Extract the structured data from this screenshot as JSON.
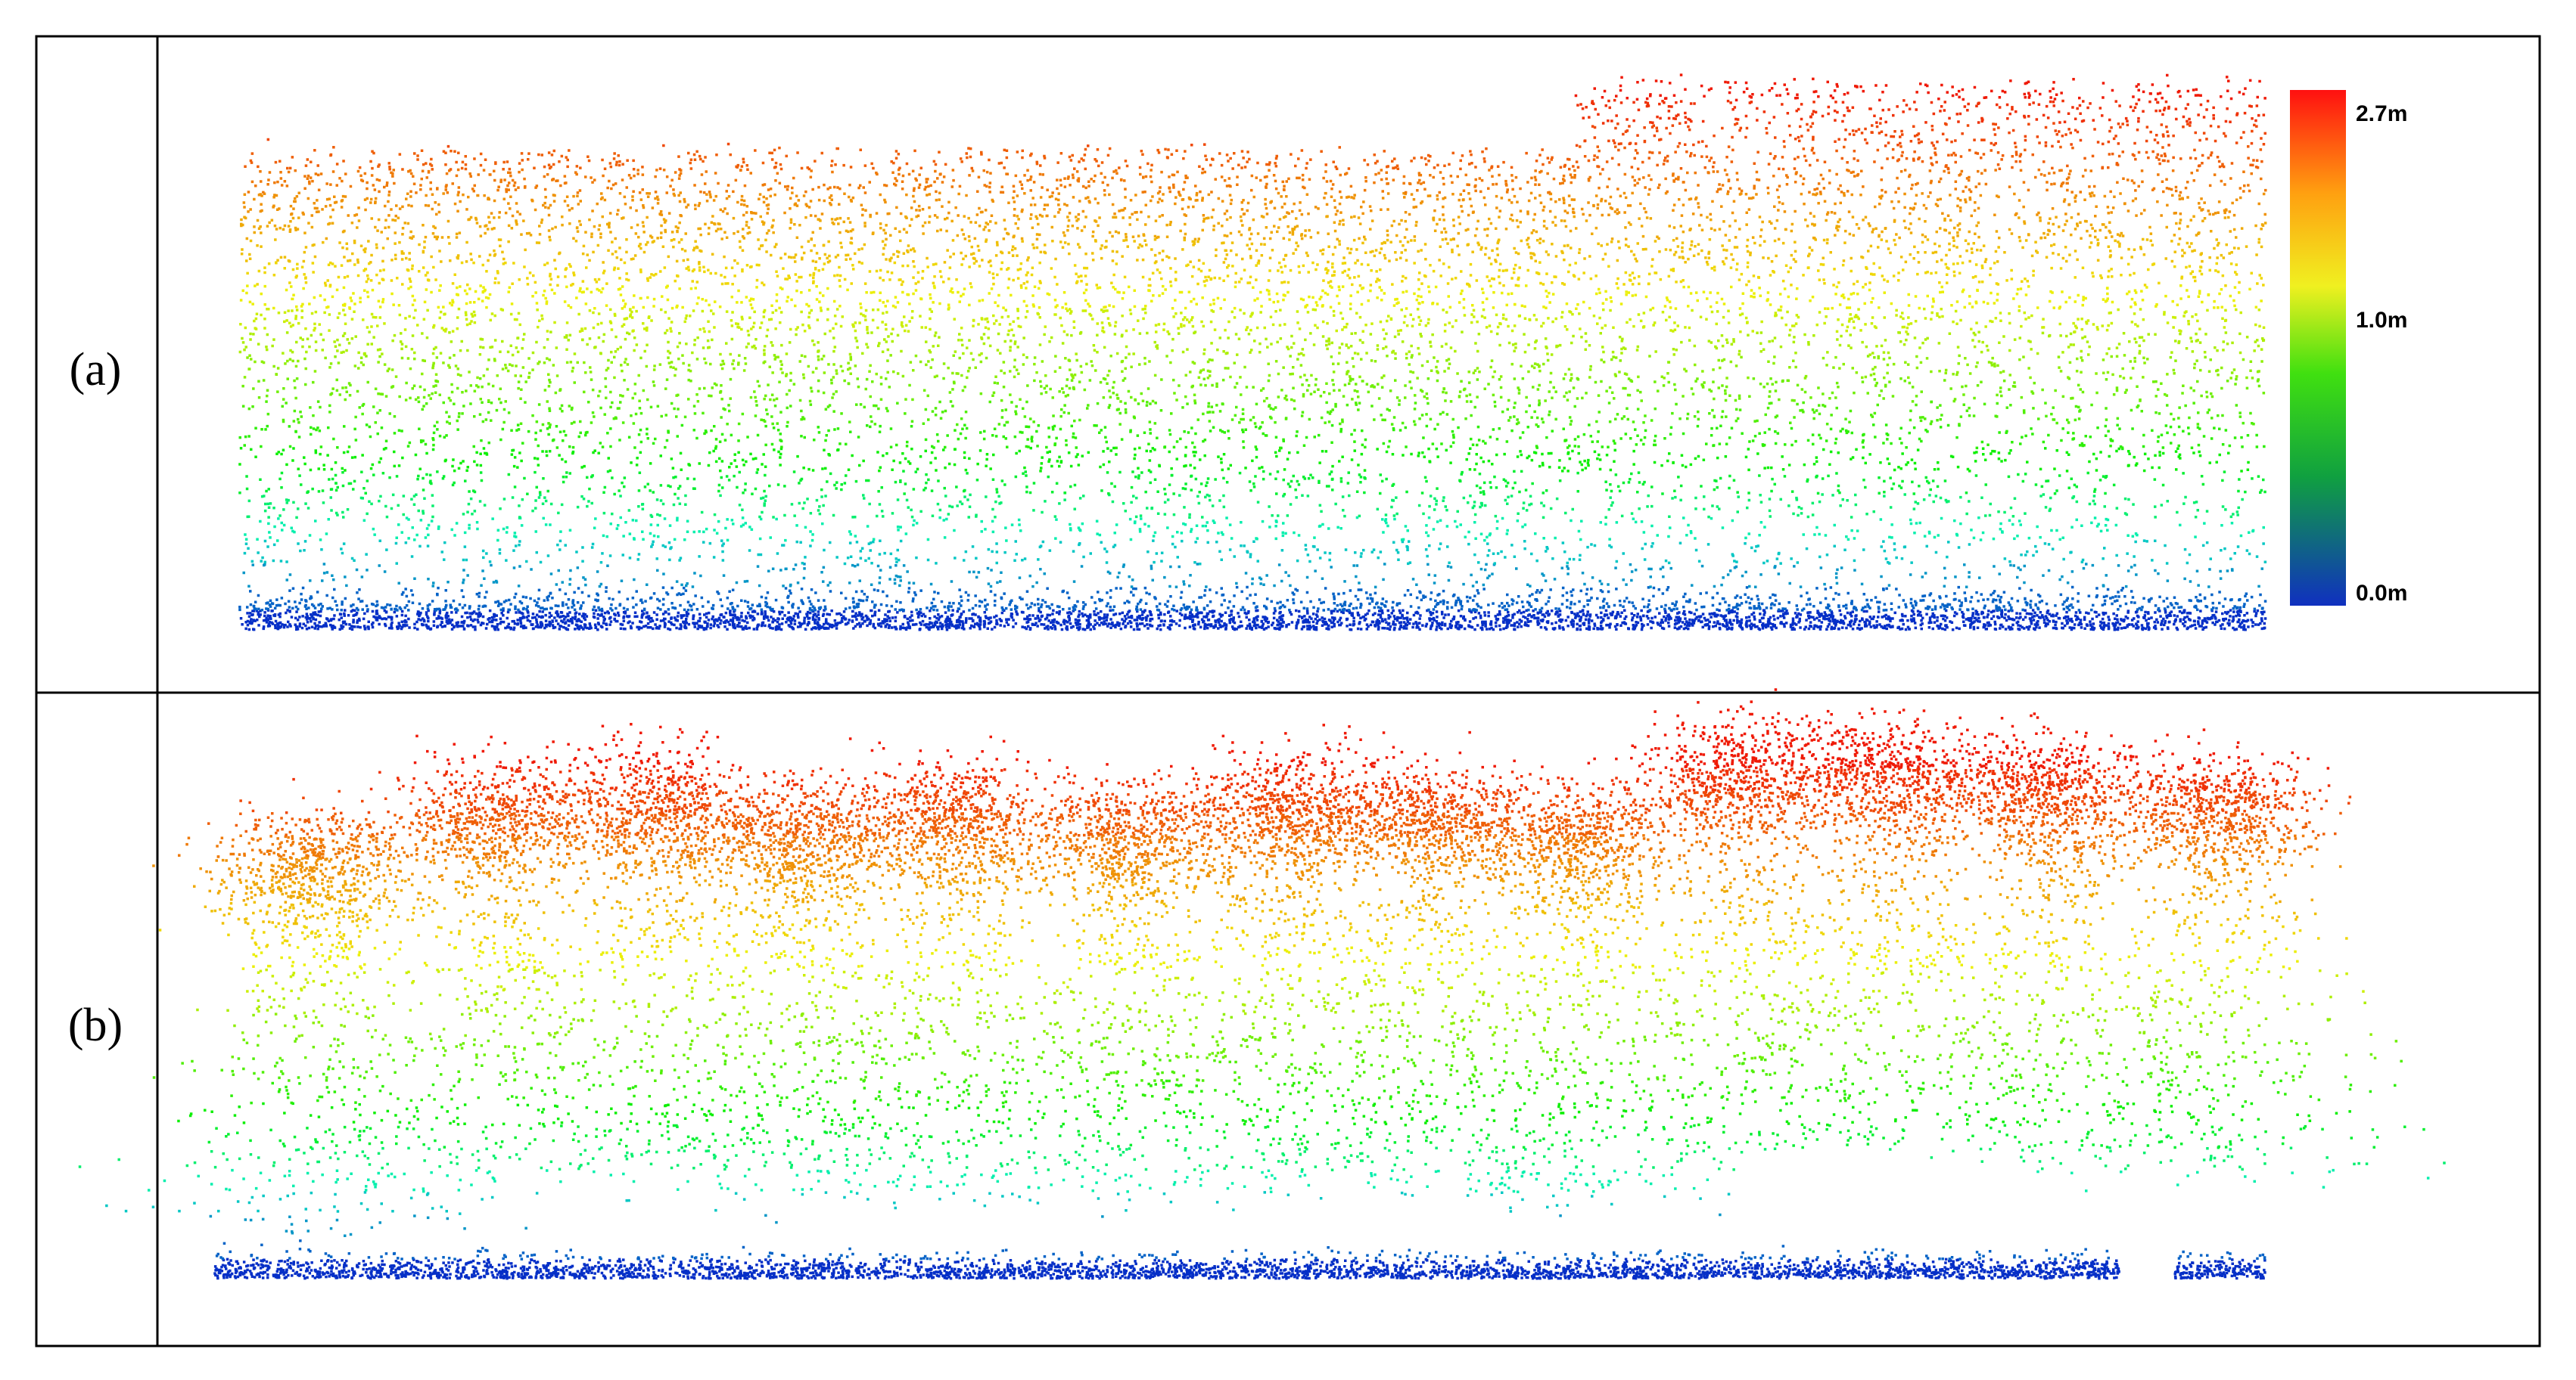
{
  "panels": [
    {
      "label": "(a)"
    },
    {
      "label": "(b)"
    }
  ],
  "colorbar": {
    "labels": [
      "2.7m",
      "1.0m",
      "0.0m"
    ]
  }
}
